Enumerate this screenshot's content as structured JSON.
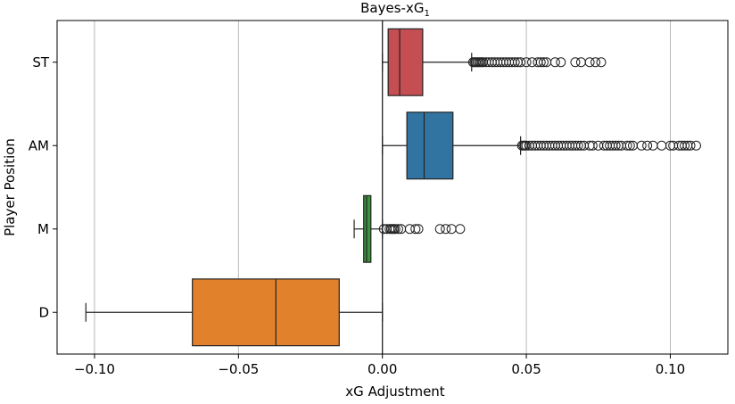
{
  "chart_data": {
    "type": "boxplot",
    "orientation": "horizontal",
    "title": "Bayes-xG",
    "title_subscript": "1",
    "xlabel": "xG Adjustment",
    "ylabel": "Player Position",
    "xlim": [
      -0.113,
      0.12
    ],
    "xticks": [
      -0.1,
      -0.05,
      0.0,
      0.05,
      0.1
    ],
    "xtick_labels": [
      "−0.10",
      "−0.05",
      "0.00",
      "0.05",
      "0.10"
    ],
    "grid": "vertical",
    "categories": [
      "ST",
      "AM",
      "M",
      "D"
    ],
    "boxes": [
      {
        "name": "ST",
        "color": "#c44e52",
        "whislo": 0.0,
        "q1": 0.002,
        "med": 0.006,
        "q3": 0.014,
        "whishi": 0.031,
        "fliers": [
          0.0315,
          0.032,
          0.0325,
          0.033,
          0.0335,
          0.034,
          0.0345,
          0.035,
          0.036,
          0.037,
          0.038,
          0.039,
          0.04,
          0.041,
          0.042,
          0.043,
          0.044,
          0.045,
          0.046,
          0.047,
          0.048,
          0.05,
          0.052,
          0.054,
          0.055,
          0.056,
          0.057,
          0.06,
          0.062,
          0.067,
          0.069,
          0.072,
          0.074,
          0.076
        ]
      },
      {
        "name": "AM",
        "color": "#3274a1",
        "whislo": 0.0,
        "q1": 0.0085,
        "med": 0.0145,
        "q3": 0.0245,
        "whishi": 0.048,
        "fliers": [
          0.0485,
          0.049,
          0.0495,
          0.05,
          0.051,
          0.052,
          0.053,
          0.054,
          0.055,
          0.056,
          0.057,
          0.058,
          0.059,
          0.06,
          0.061,
          0.062,
          0.063,
          0.064,
          0.065,
          0.066,
          0.067,
          0.068,
          0.069,
          0.07,
          0.072,
          0.073,
          0.075,
          0.077,
          0.078,
          0.079,
          0.08,
          0.081,
          0.082,
          0.083,
          0.085,
          0.086,
          0.087,
          0.09,
          0.092,
          0.094,
          0.097,
          0.1,
          0.101,
          0.103,
          0.104,
          0.105,
          0.106,
          0.107,
          0.109
        ]
      },
      {
        "name": "M",
        "color": "#3a923a",
        "whislo": -0.0098,
        "q1": -0.0065,
        "med": -0.0055,
        "q3": -0.004,
        "whishi": 0.0,
        "fliers": [
          0.0005,
          0.0015,
          0.0025,
          0.003,
          0.0035,
          0.004,
          0.0045,
          0.0055,
          0.0065,
          0.0095,
          0.0115,
          0.0125,
          0.02,
          0.022,
          0.024,
          0.027
        ]
      },
      {
        "name": "D",
        "color": "#e1812c",
        "whislo": -0.103,
        "q1": -0.066,
        "med": -0.037,
        "q3": -0.015,
        "whishi": 0.0,
        "fliers": []
      }
    ]
  }
}
